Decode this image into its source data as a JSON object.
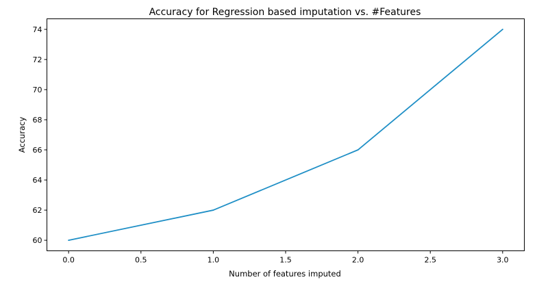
{
  "chart_data": {
    "type": "line",
    "title": "Accuracy for Regression based imputation vs. #Features",
    "xlabel": "Number of features imputed",
    "ylabel": "Accuracy",
    "x": [
      0.0,
      1.0,
      2.0,
      3.0
    ],
    "series": [
      {
        "values": [
          60,
          62,
          66,
          74
        ],
        "color": "#1f8fc6"
      }
    ],
    "xlim": [
      -0.15,
      3.15
    ],
    "ylim": [
      59.3,
      74.7
    ],
    "xticks": [
      0.0,
      0.5,
      1.0,
      1.5,
      2.0,
      2.5,
      3.0
    ],
    "xtick_labels": [
      "0.0",
      "0.5",
      "1.0",
      "1.5",
      "2.0",
      "2.5",
      "3.0"
    ],
    "yticks": [
      60,
      62,
      64,
      66,
      68,
      70,
      72,
      74
    ],
    "ytick_labels": [
      "60",
      "62",
      "64",
      "66",
      "68",
      "70",
      "72",
      "74"
    ],
    "grid": false,
    "legend": "none"
  }
}
